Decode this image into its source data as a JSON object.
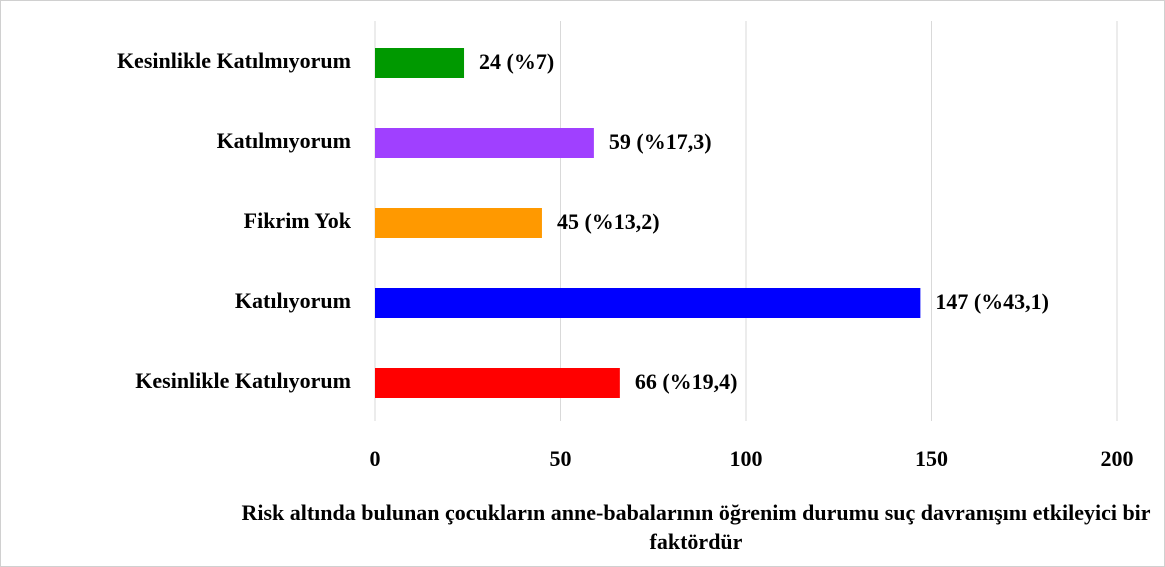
{
  "chart_data": {
    "type": "barh",
    "xlabel": "Risk altında bulunan çocukların anne-babalarının öğrenim durumu suç davranışını etkileyici bir faktördür",
    "categories": [
      "Kesinlikle Katılmıyorum",
      "Katılmıyorum",
      "Fikrim Yok",
      "Katılıyorum",
      "Kesinlikle Katılıyorum"
    ],
    "values": [
      24,
      59,
      45,
      147,
      66
    ],
    "value_labels": [
      "24 (%7)",
      "59 (%17,3)",
      "45 (%13,2)",
      "147 (%43,1)",
      "66 (%19,4)"
    ],
    "colors": [
      "#009900",
      "#a040ff",
      "#ff9900",
      "#0000ff",
      "#ff0000"
    ],
    "xlim": [
      0,
      200
    ],
    "xticks": [
      0,
      50,
      100,
      150,
      200
    ],
    "grid": true
  }
}
